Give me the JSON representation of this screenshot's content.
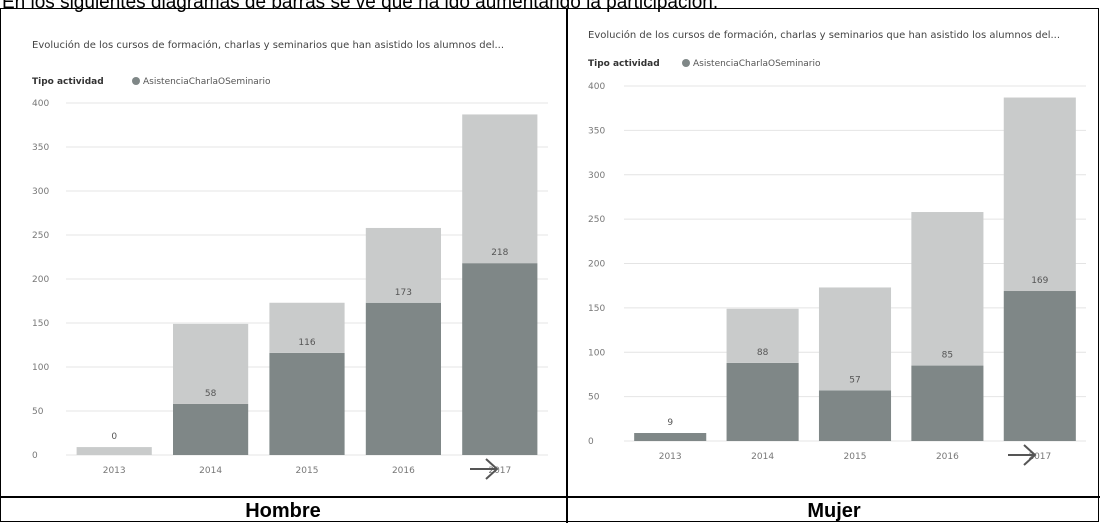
{
  "caption": "En los siguientes diagramas de barras se ve que ha ido aumentando la participación.",
  "panels": [
    {
      "label": "Hombre"
    },
    {
      "label": "Mujer"
    }
  ],
  "chart_data": [
    {
      "type": "bar",
      "title": "Evolución de los cursos de formación, charlas y seminarios que han asistido los alumnos del...",
      "legend_title": "Tipo actividad",
      "categories": [
        "2013",
        "2014",
        "2015",
        "2016",
        "2017"
      ],
      "series": [
        {
          "name": "AsistenciaCharlaOSeminario",
          "values": [
            0,
            58,
            116,
            173,
            218
          ],
          "color": "#7f8787"
        },
        {
          "name": "",
          "values": [
            9,
            91,
            57,
            85,
            169
          ],
          "color": "#c9cbcb"
        }
      ],
      "ylim": [
        0,
        400
      ],
      "yticks": [
        0,
        50,
        100,
        150,
        200,
        250,
        300,
        350,
        400
      ],
      "data_labels": [
        "0",
        "58",
        "116",
        "173",
        "218"
      ],
      "grid": true,
      "legend_position": "top-left"
    },
    {
      "type": "bar",
      "title": "Evolución de los cursos de formación, charlas y seminarios que han asistido los alumnos del...",
      "legend_title": "Tipo actividad",
      "categories": [
        "2013",
        "2014",
        "2015",
        "2016",
        "2017"
      ],
      "series": [
        {
          "name": "AsistenciaCharlaOSeminario",
          "values": [
            9,
            88,
            57,
            85,
            169
          ],
          "color": "#7f8787"
        },
        {
          "name": "",
          "values": [
            0,
            61,
            116,
            173,
            218
          ],
          "color": "#c9cbcb"
        }
      ],
      "ylim": [
        0,
        400
      ],
      "yticks": [
        0,
        50,
        100,
        150,
        200,
        250,
        300,
        350,
        400
      ],
      "data_labels": [
        "9",
        "88",
        "57",
        "85",
        "169"
      ],
      "grid": true,
      "legend_position": "top-left"
    }
  ]
}
